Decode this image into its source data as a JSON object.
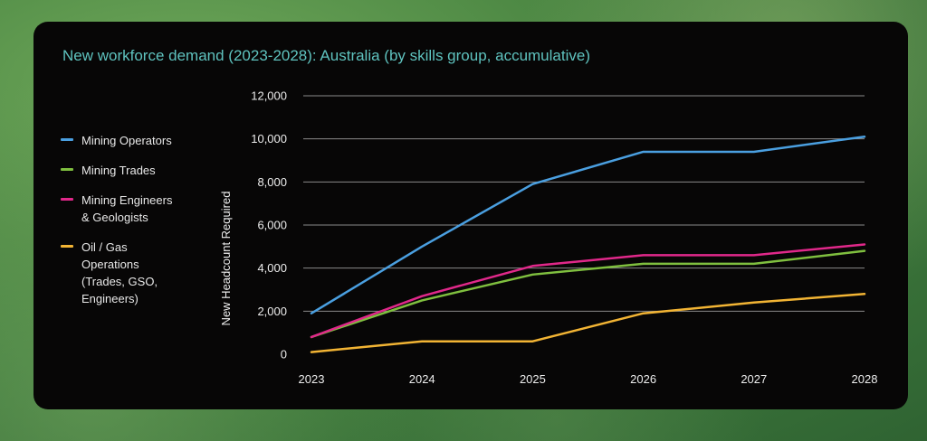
{
  "chart_data": {
    "type": "line",
    "title": "New workforce demand (2023-2028): Australia (by skills group, accumulative)",
    "xlabel": "",
    "ylabel": "New Headcount Required",
    "categories": [
      "2023",
      "2024",
      "2025",
      "2026",
      "2027",
      "2028"
    ],
    "y_ticks": [
      "0",
      "2,000",
      "4,000",
      "6,000",
      "8,000",
      "10,000",
      "12,000"
    ],
    "ylim": [
      0,
      12000
    ],
    "grid": "horizontal",
    "legend_position": "left",
    "series": [
      {
        "name": "Mining Operators",
        "color": "#4a9fe0",
        "values": [
          1900,
          5000,
          7900,
          9400,
          9400,
          10100
        ]
      },
      {
        "name": "Mining Trades",
        "color": "#7fbf3f",
        "values": [
          800,
          2500,
          3700,
          4200,
          4200,
          4800
        ]
      },
      {
        "name": "Mining Engineers\n& Geologists",
        "color": "#e0288a",
        "values": [
          800,
          2700,
          4100,
          4600,
          4600,
          5100
        ]
      },
      {
        "name": "Oil / Gas\nOperations\n(Trades, GSO,\nEngineers)",
        "color": "#f2b434",
        "values": [
          100,
          600,
          600,
          1900,
          2400,
          2800
        ]
      }
    ]
  }
}
